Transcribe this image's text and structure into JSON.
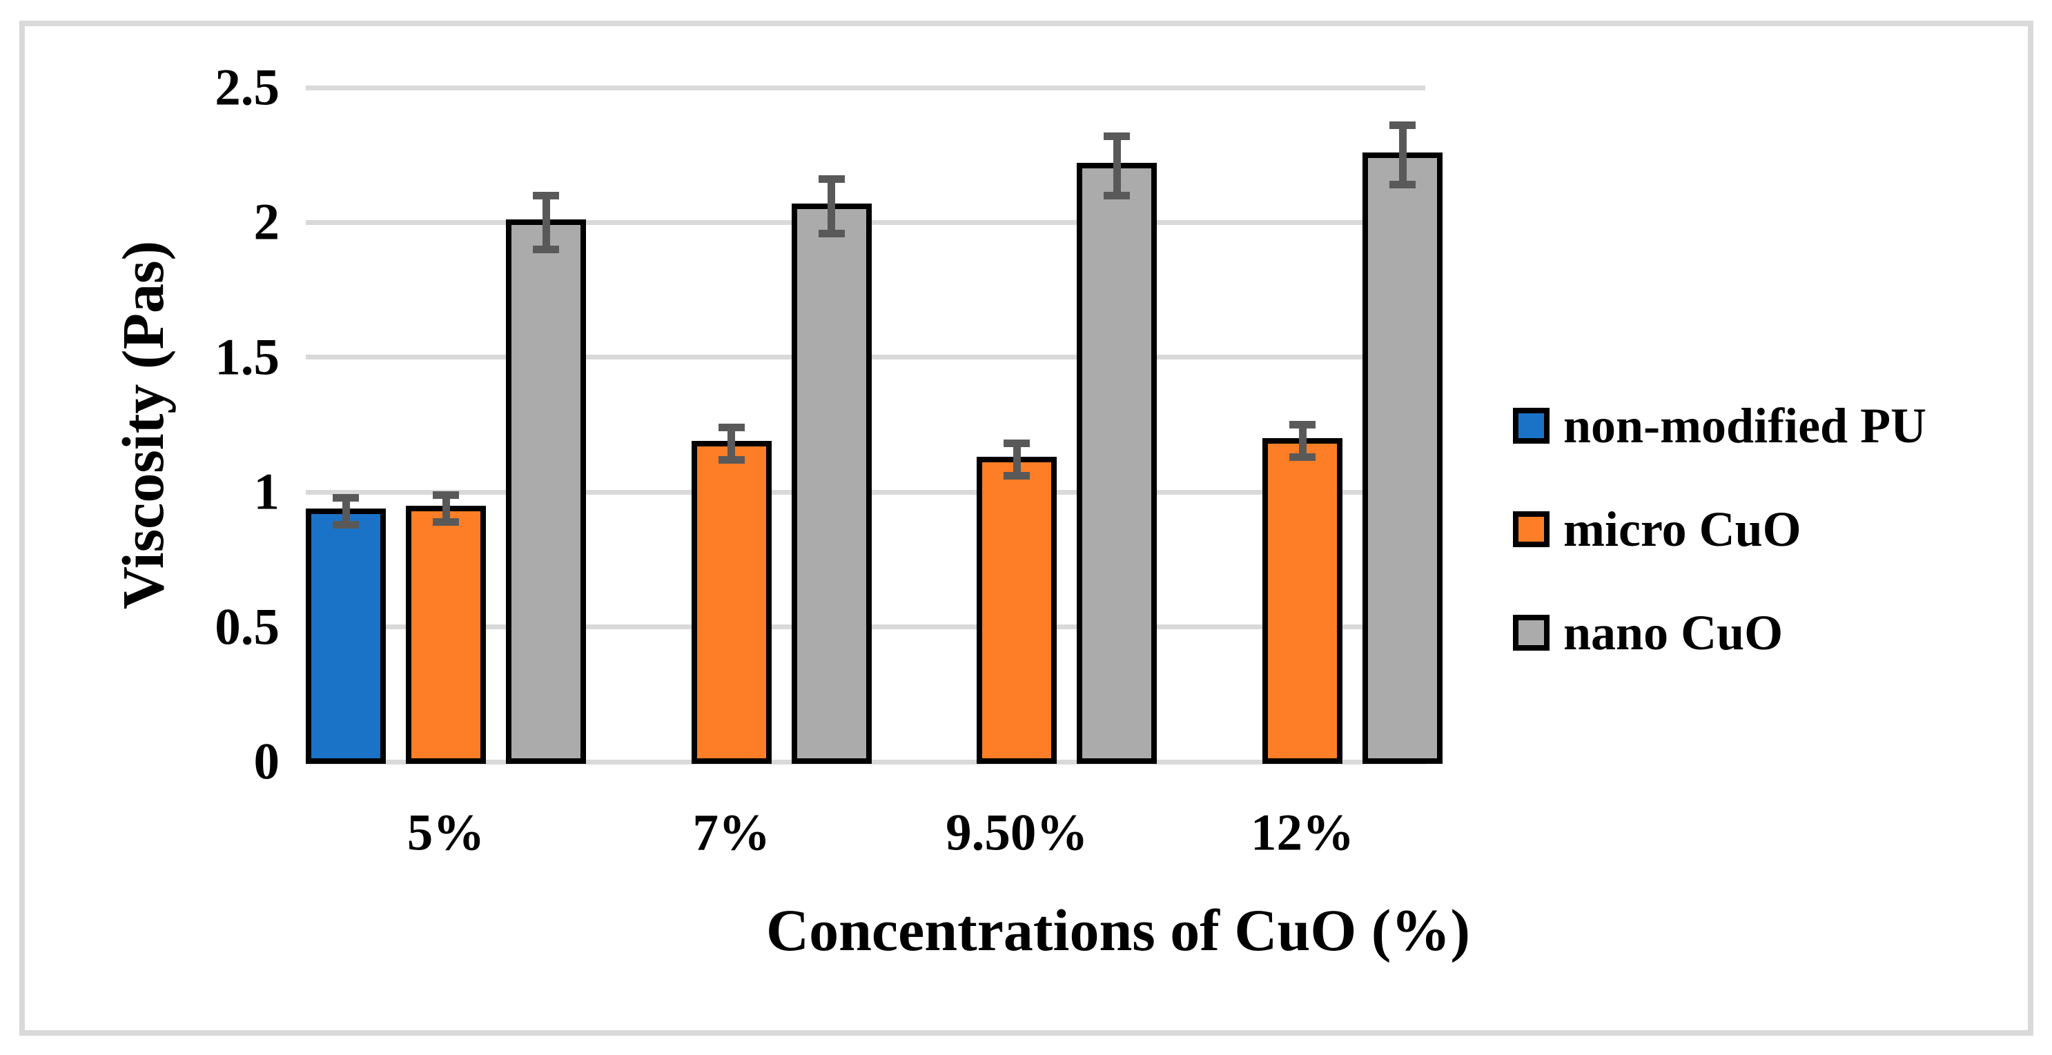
{
  "figure": {
    "background": "#FFFFFF",
    "border_color": "#D9D9D9"
  },
  "chart_data": {
    "type": "bar",
    "title": "",
    "xlabel": "Concentrations of CuO (%)",
    "ylabel": "Viscosity (Pas)",
    "categories": [
      "5%",
      "7%",
      "9.50%",
      "12%"
    ],
    "y_ticks": [
      {
        "label": "0",
        "value": 0
      },
      {
        "label": "0.5",
        "value": 0.5
      },
      {
        "label": "1",
        "value": 1
      },
      {
        "label": "1.5",
        "value": 1.5
      },
      {
        "label": "2",
        "value": 2
      },
      {
        "label": "2.5",
        "value": 2.5
      }
    ],
    "ylim": [
      0,
      2.5
    ],
    "grid": true,
    "legend_position": "right",
    "series": [
      {
        "name": "non-modified PU",
        "color": "#1B73C8",
        "values": [
          0.93,
          null,
          null,
          null
        ],
        "errors": [
          0.05,
          null,
          null,
          null
        ]
      },
      {
        "name": "micro CuO",
        "color": "#FD7E26",
        "values": [
          0.94,
          1.18,
          1.12,
          1.19
        ],
        "errors": [
          0.05,
          0.06,
          0.06,
          0.06
        ]
      },
      {
        "name": "nano CuO",
        "color": "#ABABAB",
        "values": [
          2.0,
          2.06,
          2.21,
          2.25
        ],
        "errors": [
          0.1,
          0.1,
          0.11,
          0.11
        ]
      }
    ],
    "colors": {
      "gridline": "#D9D9D9",
      "error_bar": "#595959",
      "bar_border": "#000000",
      "text": "#000000"
    }
  }
}
